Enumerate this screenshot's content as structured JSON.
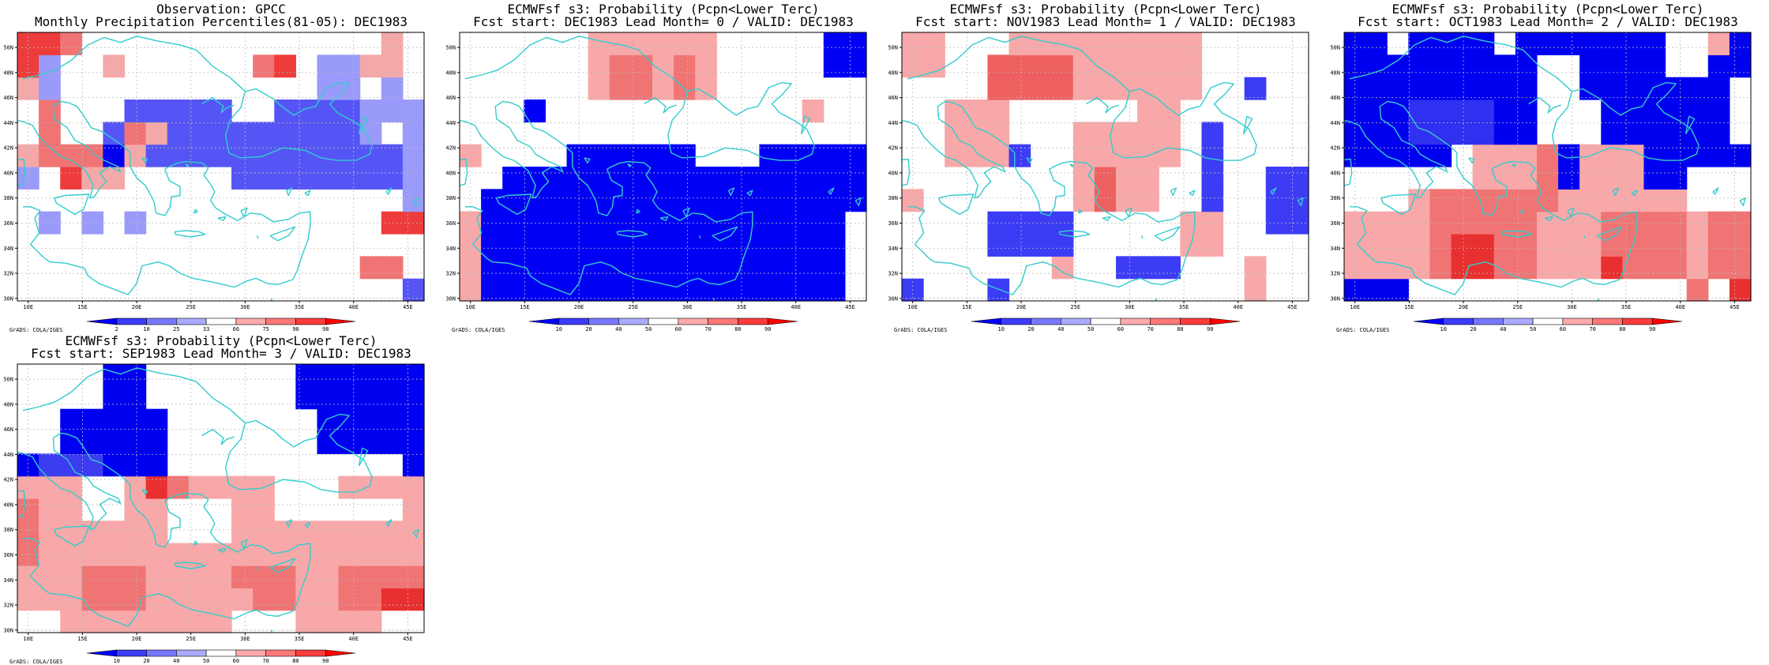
{
  "longitudes": [
    "10E",
    "15E",
    "20E",
    "25E",
    "30E",
    "35E",
    "40E",
    "45E"
  ],
  "latitudes": [
    "30N",
    "32N",
    "34N",
    "36N",
    "38N",
    "40N",
    "42N",
    "44N",
    "46N",
    "48N",
    "50N"
  ],
  "colors": {
    "coast": "#33cccc",
    "grid": "#bbbbbb",
    "frame": "#000000"
  },
  "panels": [
    {
      "title_line1": "Observation: GPCC",
      "title_line2": "Monthly Precipitation Percentiles(81-05): DEC1983",
      "credit": "GrADS: COLA/IGES",
      "colorbar": {
        "labels": [
          "2",
          "10",
          "25",
          "33",
          "66",
          "75",
          "90",
          "98"
        ],
        "colors": [
          "#0000ff",
          "#3c3cff",
          "#7878ff",
          "#aaaaff",
          "#ffffff",
          "#ffaaaa",
          "#ff7878",
          "#ff3c3c",
          "#ff0000"
        ]
      },
      "cell_classes": [
        [
          "W",
          "W",
          "W",
          "W",
          "W",
          "W",
          "W",
          "W",
          "W",
          "W",
          "W",
          "W",
          "W",
          "W",
          "W",
          "W",
          "W",
          "W",
          "W"
        ],
        [
          "B3",
          "B3",
          "W",
          "W",
          "W",
          "W",
          "W",
          "W",
          "W",
          "W",
          "W",
          "W",
          "W",
          "W",
          "B3",
          "B3",
          "W",
          "B3",
          "W"
        ],
        [
          "B3",
          "B3",
          "W",
          "W",
          "W",
          "W",
          "W",
          "W",
          "W",
          "W",
          "W",
          "W",
          "W",
          "W",
          "B3",
          "B3",
          "W",
          "B3",
          "W"
        ],
        [
          "W",
          "W",
          "W",
          "W",
          "W",
          "B1",
          "B1",
          "B1",
          "B1",
          "B1",
          "W",
          "W",
          "B1",
          "B1",
          "B1",
          "B1",
          "B3",
          "B3",
          "B3"
        ],
        [
          "W",
          "W",
          "W",
          "W",
          "B1",
          "B1",
          "B1",
          "B1",
          "B1",
          "B1",
          "B1",
          "B1",
          "B1",
          "B1",
          "B1",
          "B1",
          "B3",
          "W",
          "B3"
        ],
        [
          "W",
          "W",
          "W",
          "W",
          "B2",
          "B1",
          "B1",
          "B1",
          "B1",
          "B1",
          "B1",
          "B1",
          "B1",
          "B1",
          "B1",
          "B1",
          "B1",
          "B1",
          "B3"
        ],
        [
          "W",
          "W",
          "W",
          "W",
          "W",
          "W",
          "W",
          "W",
          "W",
          "W",
          "B1",
          "B1",
          "B1",
          "B1",
          "B1",
          "B1",
          "B1",
          "B1",
          "B3"
        ],
        [
          "W",
          "W",
          "W",
          "W",
          "W",
          "W",
          "W",
          "W",
          "W",
          "W",
          "W",
          "W",
          "W",
          "W",
          "W",
          "W",
          "W",
          "W",
          "B3"
        ],
        [
          "W",
          "W",
          "W",
          "W",
          "W",
          "W",
          "W",
          "W",
          "W",
          "W",
          "W",
          "W",
          "W",
          "W",
          "W",
          "W",
          "W",
          "W",
          "W"
        ],
        [
          "W",
          "W",
          "W",
          "W",
          "W",
          "W",
          "W",
          "W",
          "W",
          "W",
          "W",
          "W",
          "W",
          "W",
          "W",
          "W",
          "W",
          "W",
          "W"
        ],
        [
          "W",
          "W",
          "W",
          "W",
          "W",
          "W",
          "W",
          "W",
          "W",
          "W",
          "W",
          "W",
          "W",
          "W",
          "W",
          "W",
          "W",
          "W",
          "W"
        ],
        [
          "W",
          "W",
          "W",
          "W",
          "W",
          "W",
          "W",
          "W",
          "W",
          "W",
          "W",
          "W",
          "W",
          "W",
          "W",
          "W",
          "W",
          "W",
          "W"
        ]
      ],
      "overrides": [
        [
          "R3",
          0,
          0
        ],
        [
          "R3",
          1,
          0
        ],
        [
          "R2",
          2,
          0
        ],
        [
          "R3",
          0,
          1
        ],
        [
          "R1",
          0,
          2
        ],
        [
          "R2",
          1,
          3
        ],
        [
          "R2",
          1,
          4
        ],
        [
          "R2",
          1,
          5
        ],
        [
          "R2",
          2,
          5
        ],
        [
          "R2",
          3,
          5
        ],
        [
          "R3",
          2,
          6
        ],
        [
          "R2",
          5,
          4
        ],
        [
          "R1",
          6,
          4
        ],
        [
          "R1",
          4,
          6
        ],
        [
          "R1",
          3,
          6
        ],
        [
          "R1",
          5,
          5
        ],
        [
          "R1",
          4,
          1
        ],
        [
          "R1",
          0,
          5
        ],
        [
          "B3",
          0,
          6
        ],
        [
          "B3",
          1,
          8
        ],
        [
          "B3",
          3,
          8
        ],
        [
          "B3",
          5,
          8
        ],
        [
          "R2",
          11,
          1
        ],
        [
          "R3",
          12,
          1
        ],
        [
          "R1",
          17,
          0
        ],
        [
          "R3",
          17,
          8
        ],
        [
          "R3",
          18,
          8
        ],
        [
          "B1",
          18,
          11
        ],
        [
          "R2",
          16,
          10
        ],
        [
          "R2",
          17,
          10
        ],
        [
          "R1",
          16,
          1
        ],
        [
          "R1",
          17,
          1
        ]
      ],
      "fill_keys": {
        "W": "#ffffff",
        "B1": "#5555f5",
        "B2": "#0000ee",
        "B3": "#9a9afa",
        "R1": "#f4a8a8",
        "R2": "#f07474",
        "R3": "#ee3b3b"
      }
    },
    {
      "title_line1": "ECMWFsf s3: Probability (Pcpn<Lower Terc)",
      "title_line2": "Fcst start: DEC1983  Lead Month= 0 / VALID: DEC1983",
      "credit": "",
      "colorbar": {
        "labels": [
          "10",
          "20",
          "40",
          "50",
          "60",
          "70",
          "80",
          "90"
        ],
        "colors": [
          "#0000ff",
          "#3c3cff",
          "#7878ff",
          "#aaaaff",
          "#ffffff",
          "#ffaaaa",
          "#ff7878",
          "#ff3c3c",
          "#ff0000"
        ]
      },
      "fill_keys": {
        "W": "#ffffff",
        "B1": "#0000f5",
        "B2": "#4040f5",
        "R1": "#f8a8a8",
        "R2": "#f07474"
      }
    },
    {
      "title_line1": "ECMWFsf s3: Probability (Pcpn<Lower Terc)",
      "title_line2": "Fcst start: NOV1983  Lead Month= 1 / VALID: DEC1983",
      "credit": "",
      "colorbar": {
        "labels": [
          "10",
          "20",
          "40",
          "50",
          "60",
          "70",
          "80",
          "90"
        ],
        "colors": [
          "#0000ff",
          "#3c3cff",
          "#7878ff",
          "#aaaaff",
          "#ffffff",
          "#ffaaaa",
          "#ff7878",
          "#ff3c3c",
          "#ff0000"
        ]
      },
      "fill_keys": {
        "W": "#ffffff",
        "B1": "#3c3cf5",
        "R1": "#f8a8a8",
        "R2": "#ee6060",
        "R3": "#e02a2a"
      }
    },
    {
      "title_line1": "ECMWFsf s3: Probability (Pcpn<Lower Terc)",
      "title_line2": "Fcst start: OCT1983  Lead Month= 2 / VALID: DEC1983",
      "credit": "",
      "colorbar": {
        "labels": [
          "10",
          "20",
          "40",
          "50",
          "60",
          "70",
          "80",
          "90"
        ],
        "colors": [
          "#0000ff",
          "#3c3cff",
          "#7878ff",
          "#aaaaff",
          "#ffffff",
          "#ffaaaa",
          "#ff7878",
          "#ff3c3c",
          "#ff0000"
        ]
      },
      "fill_keys": {
        "W": "#ffffff",
        "B1": "#0000f0",
        "B2": "#3030f0",
        "R1": "#f8a8a8",
        "R2": "#f07474",
        "R3": "#e83030",
        "R4": "#cc0000"
      }
    },
    {
      "title_line1": "ECMWFsf s3: Probability (Pcpn<Lower Terc)",
      "title_line2": "Fcst start: SEP1983  Lead Month= 3 / VALID: DEC1983",
      "credit": "GrADS: COLA/IGES",
      "colorbar": {
        "labels": [
          "10",
          "20",
          "40",
          "50",
          "60",
          "70",
          "80",
          "90"
        ],
        "colors": [
          "#0000ff",
          "#3c3cff",
          "#7878ff",
          "#aaaaff",
          "#ffffff",
          "#ffaaaa",
          "#ff7878",
          "#ff3c3c",
          "#ff0000"
        ]
      },
      "fill_keys": {
        "W": "#ffffff",
        "B1": "#0000f0",
        "B2": "#3c3cf0",
        "R1": "#f8a8a8",
        "R2": "#f07474",
        "R3": "#e83030"
      }
    }
  ],
  "credit_text": "GrADS: COLA/IGES"
}
